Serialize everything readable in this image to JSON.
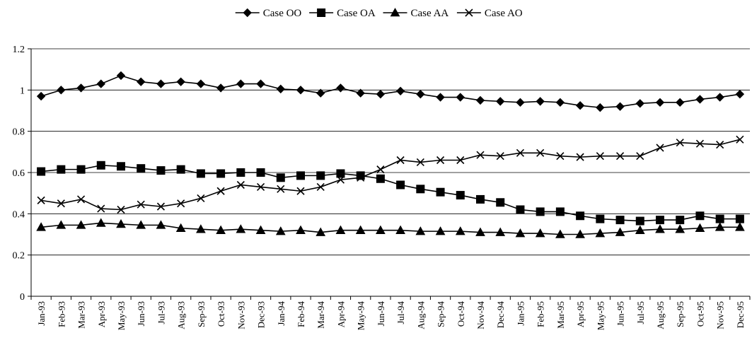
{
  "chart_data": {
    "type": "line",
    "title": "",
    "xlabel": "",
    "ylabel": "",
    "ylim": [
      0,
      1.2
    ],
    "yticks": [
      "0",
      "0.2",
      "0.4",
      "0.6",
      "0.8",
      "1",
      "1.2"
    ],
    "grid": "horizontal",
    "legend_position": "top-center",
    "categories": [
      "Jan-93",
      "Feb-93",
      "Mar-93",
      "Apr-93",
      "May-93",
      "Jun-93",
      "Jul-93",
      "Aug-93",
      "Sep-93",
      "Oct-93",
      "Nov-93",
      "Dec-93",
      "Jan-94",
      "Feb-94",
      "Mar-94",
      "Apr-94",
      "May-94",
      "Jun-94",
      "Jul-94",
      "Aug-94",
      "Sep-94",
      "Oct-94",
      "Nov-94",
      "Dec-94",
      "Jan-95",
      "Feb-95",
      "Mar-95",
      "Apr-95",
      "May-95",
      "Jun-95",
      "Jul-95",
      "Aug-95",
      "Sep-95",
      "Oct-95",
      "Nov-95",
      "Dec-95"
    ],
    "series": [
      {
        "name": "Case OO",
        "marker": "diamond",
        "values": [
          0.97,
          1.0,
          1.01,
          1.03,
          1.07,
          1.04,
          1.03,
          1.04,
          1.03,
          1.01,
          1.03,
          1.03,
          1.005,
          1.0,
          0.985,
          1.01,
          0.985,
          0.98,
          0.995,
          0.98,
          0.965,
          0.965,
          0.95,
          0.945,
          0.94,
          0.945,
          0.94,
          0.925,
          0.915,
          0.92,
          0.935,
          0.94,
          0.94,
          0.955,
          0.965,
          0.98
        ]
      },
      {
        "name": "Case OA",
        "marker": "square",
        "values": [
          0.605,
          0.615,
          0.615,
          0.635,
          0.63,
          0.62,
          0.61,
          0.615,
          0.595,
          0.595,
          0.6,
          0.6,
          0.575,
          0.585,
          0.585,
          0.595,
          0.585,
          0.57,
          0.54,
          0.52,
          0.505,
          0.49,
          0.47,
          0.455,
          0.42,
          0.41,
          0.41,
          0.39,
          0.375,
          0.37,
          0.365,
          0.37,
          0.37,
          0.39,
          0.375,
          0.375
        ]
      },
      {
        "name": "Case AA",
        "marker": "triangle",
        "values": [
          0.335,
          0.345,
          0.345,
          0.355,
          0.35,
          0.345,
          0.345,
          0.33,
          0.325,
          0.32,
          0.325,
          0.32,
          0.315,
          0.32,
          0.31,
          0.32,
          0.32,
          0.32,
          0.32,
          0.315,
          0.315,
          0.315,
          0.31,
          0.31,
          0.305,
          0.305,
          0.3,
          0.3,
          0.305,
          0.31,
          0.32,
          0.325,
          0.325,
          0.33,
          0.335,
          0.335
        ]
      },
      {
        "name": "Case AO",
        "marker": "x",
        "values": [
          0.465,
          0.45,
          0.47,
          0.425,
          0.42,
          0.445,
          0.435,
          0.45,
          0.475,
          0.51,
          0.54,
          0.53,
          0.52,
          0.51,
          0.53,
          0.565,
          0.575,
          0.615,
          0.66,
          0.65,
          0.66,
          0.66,
          0.685,
          0.68,
          0.695,
          0.695,
          0.68,
          0.675,
          0.68,
          0.68,
          0.68,
          0.72,
          0.745,
          0.74,
          0.735,
          0.76
        ]
      }
    ]
  }
}
